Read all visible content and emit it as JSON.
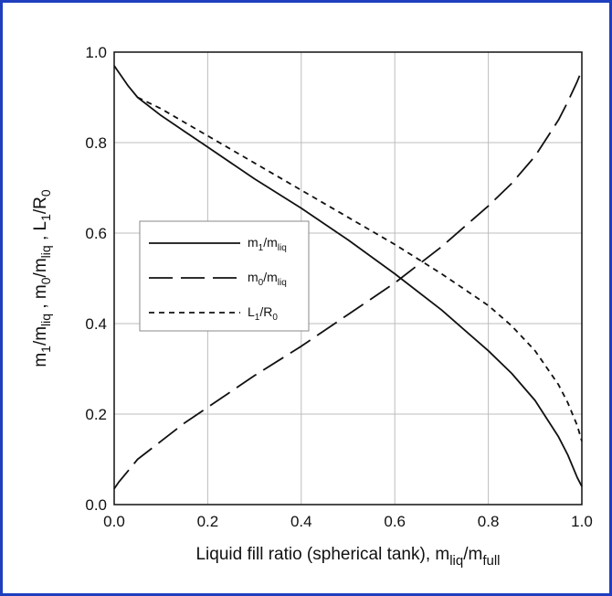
{
  "chart_data": {
    "type": "line",
    "xlabel": "Liquid fill ratio (spherical tank), m",
    "xlabel_sub": "liq",
    "xlabel_tail": "/m",
    "xlabel_tail_sub": "full",
    "ylabel_parts": [
      "m",
      "1",
      "/m",
      "liq",
      " , m",
      "0",
      "/m",
      "liq",
      " , L",
      "1",
      "/R",
      "0"
    ],
    "xlim": [
      0,
      1
    ],
    "ylim": [
      0,
      1
    ],
    "xticks": [
      "0.0",
      "0.2",
      "0.4",
      "0.6",
      "0.8",
      "1.0"
    ],
    "yticks": [
      "0.0",
      "0.2",
      "0.4",
      "0.6",
      "0.8",
      "1.0"
    ],
    "grid": true,
    "legend_position": "center-left",
    "series": [
      {
        "name_parts": [
          "m",
          "1",
          "/m",
          "liq"
        ],
        "dash": "solid",
        "x": [
          0.0,
          0.01,
          0.03,
          0.05,
          0.1,
          0.15,
          0.2,
          0.3,
          0.4,
          0.5,
          0.6,
          0.7,
          0.8,
          0.85,
          0.9,
          0.95,
          0.97,
          0.99,
          1.0
        ],
        "y": [
          0.97,
          0.955,
          0.925,
          0.9,
          0.86,
          0.825,
          0.79,
          0.72,
          0.655,
          0.585,
          0.51,
          0.43,
          0.34,
          0.29,
          0.23,
          0.15,
          0.11,
          0.06,
          0.04
        ]
      },
      {
        "name_parts": [
          "m",
          "0",
          "/m",
          "liq"
        ],
        "dash": "long-dash",
        "x": [
          0.0,
          0.01,
          0.03,
          0.05,
          0.1,
          0.15,
          0.2,
          0.3,
          0.4,
          0.5,
          0.6,
          0.7,
          0.8,
          0.85,
          0.9,
          0.95,
          0.97,
          0.99,
          1.0
        ],
        "y": [
          0.035,
          0.05,
          0.075,
          0.1,
          0.14,
          0.18,
          0.215,
          0.285,
          0.35,
          0.42,
          0.49,
          0.57,
          0.66,
          0.71,
          0.77,
          0.85,
          0.89,
          0.935,
          0.96
        ]
      },
      {
        "name_parts": [
          "L",
          "1",
          "/R",
          "0"
        ],
        "dash": "short-dash",
        "x": [
          0.05,
          0.1,
          0.2,
          0.3,
          0.4,
          0.5,
          0.6,
          0.7,
          0.8,
          0.85,
          0.9,
          0.95,
          0.97,
          0.99,
          1.0
        ],
        "y": [
          0.9,
          0.875,
          0.815,
          0.755,
          0.695,
          0.635,
          0.575,
          0.51,
          0.44,
          0.395,
          0.34,
          0.265,
          0.225,
          0.175,
          0.14
        ]
      }
    ]
  }
}
